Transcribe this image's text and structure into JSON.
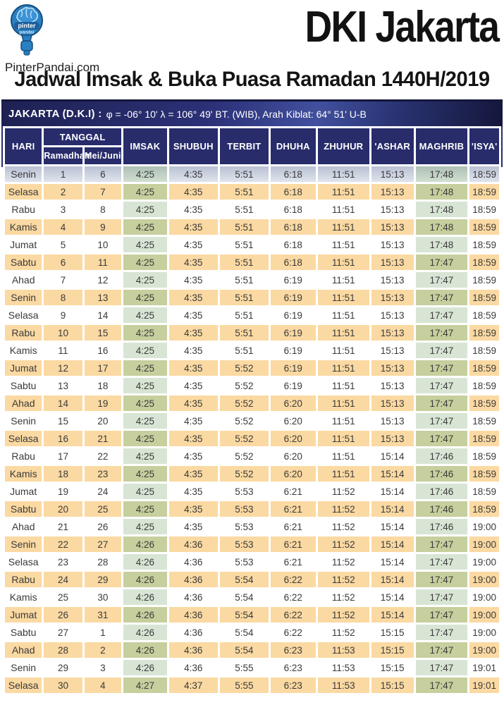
{
  "brand": {
    "site": "PinterPandai.com",
    "logo_word_top": "pinter",
    "logo_word_bottom": "pandai"
  },
  "header": {
    "title": "DKI Jakarta",
    "subtitle": "Jadwal Imsak & Buka Puasa Ramadan 1440H/2019"
  },
  "info_bar": {
    "location_label": "JAKARTA (D.K.I) :",
    "details": "φ = -06° 10'  λ = 106° 49'  BT. (WIB), Arah Kiblat: 64° 51'  U-B"
  },
  "table": {
    "header": {
      "hari": "HARI",
      "tanggal": "TANGGAL",
      "ramadhan": "Ramadhan",
      "mei_juni": "Mei/Juni",
      "times": [
        "IMSAK",
        "SHUBUH",
        "TERBIT",
        "DHUHA",
        "ZHUHUR",
        "'ASHAR",
        "MAGHRIB",
        "'ISYA'"
      ]
    },
    "rows": [
      [
        "Senin",
        "1",
        "6",
        "4:25",
        "4:35",
        "5:51",
        "6:18",
        "11:51",
        "15:13",
        "17:48",
        "18:59"
      ],
      [
        "Selasa",
        "2",
        "7",
        "4:25",
        "4:35",
        "5:51",
        "6:18",
        "11:51",
        "15:13",
        "17:48",
        "18:59"
      ],
      [
        "Rabu",
        "3",
        "8",
        "4:25",
        "4:35",
        "5:51",
        "6:18",
        "11:51",
        "15:13",
        "17:48",
        "18:59"
      ],
      [
        "Kamis",
        "4",
        "9",
        "4:25",
        "4:35",
        "5:51",
        "6:18",
        "11:51",
        "15:13",
        "17:48",
        "18:59"
      ],
      [
        "Jumat",
        "5",
        "10",
        "4:25",
        "4:35",
        "5:51",
        "6:18",
        "11:51",
        "15:13",
        "17:48",
        "18:59"
      ],
      [
        "Sabtu",
        "6",
        "11",
        "4:25",
        "4:35",
        "5:51",
        "6:18",
        "11:51",
        "15:13",
        "17:47",
        "18:59"
      ],
      [
        "Ahad",
        "7",
        "12",
        "4:25",
        "4:35",
        "5:51",
        "6:19",
        "11:51",
        "15:13",
        "17:47",
        "18:59"
      ],
      [
        "Senin",
        "8",
        "13",
        "4:25",
        "4:35",
        "5:51",
        "6:19",
        "11:51",
        "15:13",
        "17:47",
        "18:59"
      ],
      [
        "Selasa",
        "9",
        "14",
        "4:25",
        "4:35",
        "5:51",
        "6:19",
        "11:51",
        "15:13",
        "17:47",
        "18:59"
      ],
      [
        "Rabu",
        "10",
        "15",
        "4:25",
        "4:35",
        "5:51",
        "6:19",
        "11:51",
        "15:13",
        "17:47",
        "18:59"
      ],
      [
        "Kamis",
        "11",
        "16",
        "4:25",
        "4:35",
        "5:51",
        "6:19",
        "11:51",
        "15:13",
        "17:47",
        "18:59"
      ],
      [
        "Jumat",
        "12",
        "17",
        "4:25",
        "4:35",
        "5:52",
        "6:19",
        "11:51",
        "15:13",
        "17:47",
        "18:59"
      ],
      [
        "Sabtu",
        "13",
        "18",
        "4:25",
        "4:35",
        "5:52",
        "6:19",
        "11:51",
        "15:13",
        "17:47",
        "18:59"
      ],
      [
        "Ahad",
        "14",
        "19",
        "4:25",
        "4:35",
        "5:52",
        "6:20",
        "11:51",
        "15:13",
        "17:47",
        "18:59"
      ],
      [
        "Senin",
        "15",
        "20",
        "4:25",
        "4:35",
        "5:52",
        "6:20",
        "11:51",
        "15:13",
        "17:47",
        "18:59"
      ],
      [
        "Selasa",
        "16",
        "21",
        "4:25",
        "4:35",
        "5:52",
        "6:20",
        "11:51",
        "15:13",
        "17:47",
        "18:59"
      ],
      [
        "Rabu",
        "17",
        "22",
        "4:25",
        "4:35",
        "5:52",
        "6:20",
        "11:51",
        "15:14",
        "17:46",
        "18:59"
      ],
      [
        "Kamis",
        "18",
        "23",
        "4:25",
        "4:35",
        "5:52",
        "6:20",
        "11:51",
        "15:14",
        "17:46",
        "18:59"
      ],
      [
        "Jumat",
        "19",
        "24",
        "4:25",
        "4:35",
        "5:53",
        "6:21",
        "11:52",
        "15:14",
        "17:46",
        "18:59"
      ],
      [
        "Sabtu",
        "20",
        "25",
        "4:25",
        "4:35",
        "5:53",
        "6:21",
        "11:52",
        "15:14",
        "17:46",
        "18:59"
      ],
      [
        "Ahad",
        "21",
        "26",
        "4:25",
        "4:35",
        "5:53",
        "6:21",
        "11:52",
        "15:14",
        "17:46",
        "19:00"
      ],
      [
        "Senin",
        "22",
        "27",
        "4:26",
        "4:36",
        "5:53",
        "6:21",
        "11:52",
        "15:14",
        "17:47",
        "19:00"
      ],
      [
        "Selasa",
        "23",
        "28",
        "4:26",
        "4:36",
        "5:53",
        "6:21",
        "11:52",
        "15:14",
        "17:47",
        "19:00"
      ],
      [
        "Rabu",
        "24",
        "29",
        "4:26",
        "4:36",
        "5:54",
        "6:22",
        "11:52",
        "15:14",
        "17:47",
        "19:00"
      ],
      [
        "Kamis",
        "25",
        "30",
        "4:26",
        "4:36",
        "5:54",
        "6:22",
        "11:52",
        "15:14",
        "17:47",
        "19:00"
      ],
      [
        "Jumat",
        "26",
        "31",
        "4:26",
        "4:36",
        "5:54",
        "6:22",
        "11:52",
        "15:14",
        "17:47",
        "19:00"
      ],
      [
        "Sabtu",
        "27",
        "1",
        "4:26",
        "4:36",
        "5:54",
        "6:22",
        "11:52",
        "15:15",
        "17:47",
        "19:00"
      ],
      [
        "Ahad",
        "28",
        "2",
        "4:26",
        "4:36",
        "5:54",
        "6:23",
        "11:53",
        "15:15",
        "17:47",
        "19:00"
      ],
      [
        "Senin",
        "29",
        "3",
        "4:26",
        "4:36",
        "5:55",
        "6:23",
        "11:53",
        "15:15",
        "17:47",
        "19:01"
      ],
      [
        "Selasa",
        "30",
        "4",
        "4:27",
        "4:37",
        "5:55",
        "6:23",
        "11:53",
        "15:15",
        "17:47",
        "19:01"
      ]
    ]
  },
  "colors": {
    "header_navy": "#282c6b",
    "row_orange": "#fbd9a2",
    "highlight_green_light": "#d8e5d5",
    "highlight_green_olive": "#c6cf9d",
    "logo_blue": "#2a7fc0"
  }
}
